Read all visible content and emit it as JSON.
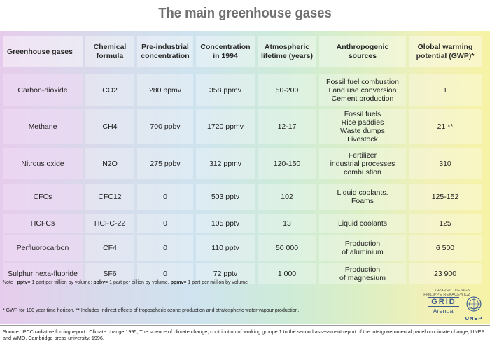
{
  "title": "The main greenhouse gases",
  "headers": [
    [
      "Greenhouse gases"
    ],
    [
      "Chemical",
      "formula"
    ],
    [
      "Pre-industrial",
      "concentration"
    ],
    [
      "Concentration",
      "in 1994"
    ],
    [
      "Atmospheric",
      "lifetime (years)"
    ],
    [
      "Anthropogenic",
      "sources"
    ],
    [
      "Global warming",
      "potential (GWP)*"
    ]
  ],
  "rows": [
    {
      "gas": "Carbon-dioxide",
      "formula": "CO2",
      "pre": "280 ppmv",
      "conc": "358 ppmv",
      "life": "50-200",
      "sources": [
        "Fossil fuel combustion",
        "Land use conversion",
        "Cement production"
      ],
      "gwp": "1"
    },
    {
      "gas": "Methane",
      "formula": "CH4",
      "pre": "700 ppbv",
      "conc": "1720 ppmv",
      "life": "12-17",
      "sources": [
        "Fossil fuels",
        "Rice paddies",
        "Waste dumps",
        "Livestock"
      ],
      "gwp": "21 **"
    },
    {
      "gas": "Nitrous oxide",
      "formula": "N2O",
      "pre": "275 ppbv",
      "conc": "312 ppmv",
      "life": "120-150",
      "sources": [
        "Fertilizer",
        "industrial processes",
        "combustion"
      ],
      "gwp": "310"
    },
    {
      "gas": "CFCs",
      "formula": "CFC12",
      "pre": "0",
      "conc": "503 pptv",
      "life": "102",
      "sources": [
        "Liquid coolants.",
        "Foams"
      ],
      "gwp": "125-152"
    },
    {
      "gas": "HCFCs",
      "formula": "HCFC-22",
      "pre": "0",
      "conc": "105 pptv",
      "life": "13",
      "sources": [
        "Liquid coolants"
      ],
      "gwp": "125"
    },
    {
      "gas": "Perfluorocarbon",
      "formula": "CF4",
      "pre": "0",
      "conc": "110 pptv",
      "life": "50 000",
      "sources": [
        "Production",
        "of aluminium"
      ],
      "gwp": "6 500"
    },
    {
      "gas": "Sulphur hexa-fluoride",
      "formula": "SF6",
      "pre": "0",
      "conc": "72 pptv",
      "life": "1 000",
      "sources": [
        "Production",
        "of magnesium"
      ],
      "gwp": "23 900"
    }
  ],
  "note_units": {
    "prefix": "Note : ",
    "pptv": "pptv",
    "pptv_def": "= 1 part per trillion by volume; ",
    "ppbv": "ppbv",
    "ppbv_def": "= 1 part per billion by volume, ",
    "ppmv": "ppmv",
    "ppmv_def": "= 1 part per million by volume"
  },
  "note_gwp": "* GWP for 100 year time horizon. ** Includes indirect effects of tropospheric ozone production and stratospheric water vapour production.",
  "credit": [
    "GRAPHIC DESIGN",
    "PHILIPPE REKACEWICZ"
  ],
  "logo_grid": "GRID",
  "logo_arendal": "Arendal",
  "logo_unep": "UNEP",
  "source": "Source: IPCC radiative forcing report ; Climate change 1995, The science of climate change, contribution of working groupe 1 to the second assessment report of the intergovernmental panel on climate change, UNEP and WMO, Cambridge press university, 1996."
}
